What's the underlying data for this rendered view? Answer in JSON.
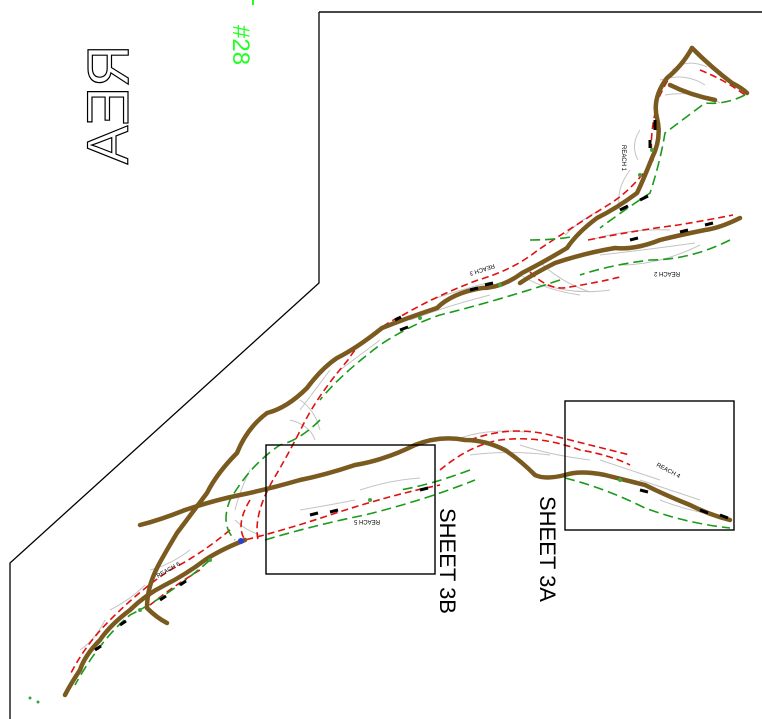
{
  "drawing": {
    "title_fragment": "REA",
    "tag_number": "#28",
    "sheet_labels": {
      "sheet_3b": "SHEET 3B",
      "sheet_3a": "SHEET 3A"
    },
    "reach_labels": {
      "reach_1": "REACH 1",
      "reach_2": "REACH 2",
      "reach_3": "REACH 3",
      "reach_4": "REACH 4",
      "reach_5": "REACH 5",
      "reach_6": "REACH 6"
    },
    "colors": {
      "stream": "#7a5a1e",
      "red_dash": "#e01010",
      "green_dash": "#1a9a1a",
      "contour_gray": "#bdbdbd",
      "label_green": "#22ff22"
    }
  }
}
